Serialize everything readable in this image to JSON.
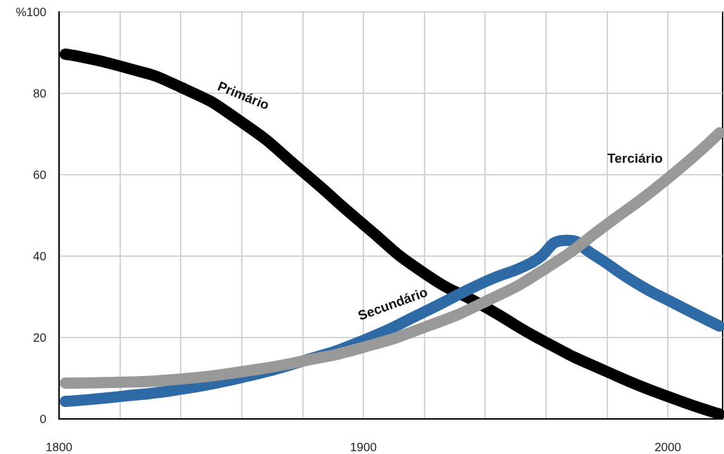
{
  "chart_data": {
    "type": "line",
    "x": [
      1802,
      1820,
      1840,
      1860,
      1880,
      1900,
      1920,
      1940,
      1960,
      1980,
      2000,
      2017
    ],
    "series": [
      {
        "name": "Primário",
        "color": "#000000",
        "values": [
          89.6,
          86.7,
          81.5,
          72.9,
          60.8,
          47.8,
          35.8,
          27.5,
          18.8,
          11.6,
          5.5,
          1.2
        ]
      },
      {
        "name": "Secundário",
        "color": "#2e6aa6",
        "x": [
          1802,
          1820,
          1840,
          1860,
          1880,
          1900,
          1920,
          1940,
          1955,
          1967,
          1975,
          1990,
          2000,
          2017
        ],
        "values": [
          4.3,
          5.5,
          7.3,
          10.2,
          14.2,
          19.3,
          26.3,
          33.7,
          38.3,
          43.9,
          40.6,
          33.2,
          29.2,
          22.8
        ]
      },
      {
        "name": "Terciário",
        "color": "#999999",
        "values": [
          8.8,
          9.0,
          9.8,
          11.6,
          14.2,
          17.6,
          22.5,
          28.8,
          37.0,
          47.8,
          59.1,
          70.3
        ]
      }
    ],
    "xlim": [
      1800,
      2018
    ],
    "xticks": [
      1800,
      {
        "value": 1820,
        "label": null
      },
      {
        "value": 1840,
        "label": null
      },
      {
        "value": 1860,
        "label": null
      },
      {
        "value": 1880,
        "label": null
      },
      1900,
      {
        "value": 1920,
        "label": null
      },
      {
        "value": 1940,
        "label": null
      },
      {
        "value": 1960,
        "label": null
      },
      {
        "value": 1980,
        "label": null
      },
      2000
    ],
    "ylim": [
      0,
      100
    ],
    "yticks": [
      0,
      20,
      40,
      60,
      80,
      {
        "value": 100,
        "label": "%100"
      }
    ],
    "grid": true,
    "legend": false,
    "marker": "none",
    "line_style": "solid"
  }
}
